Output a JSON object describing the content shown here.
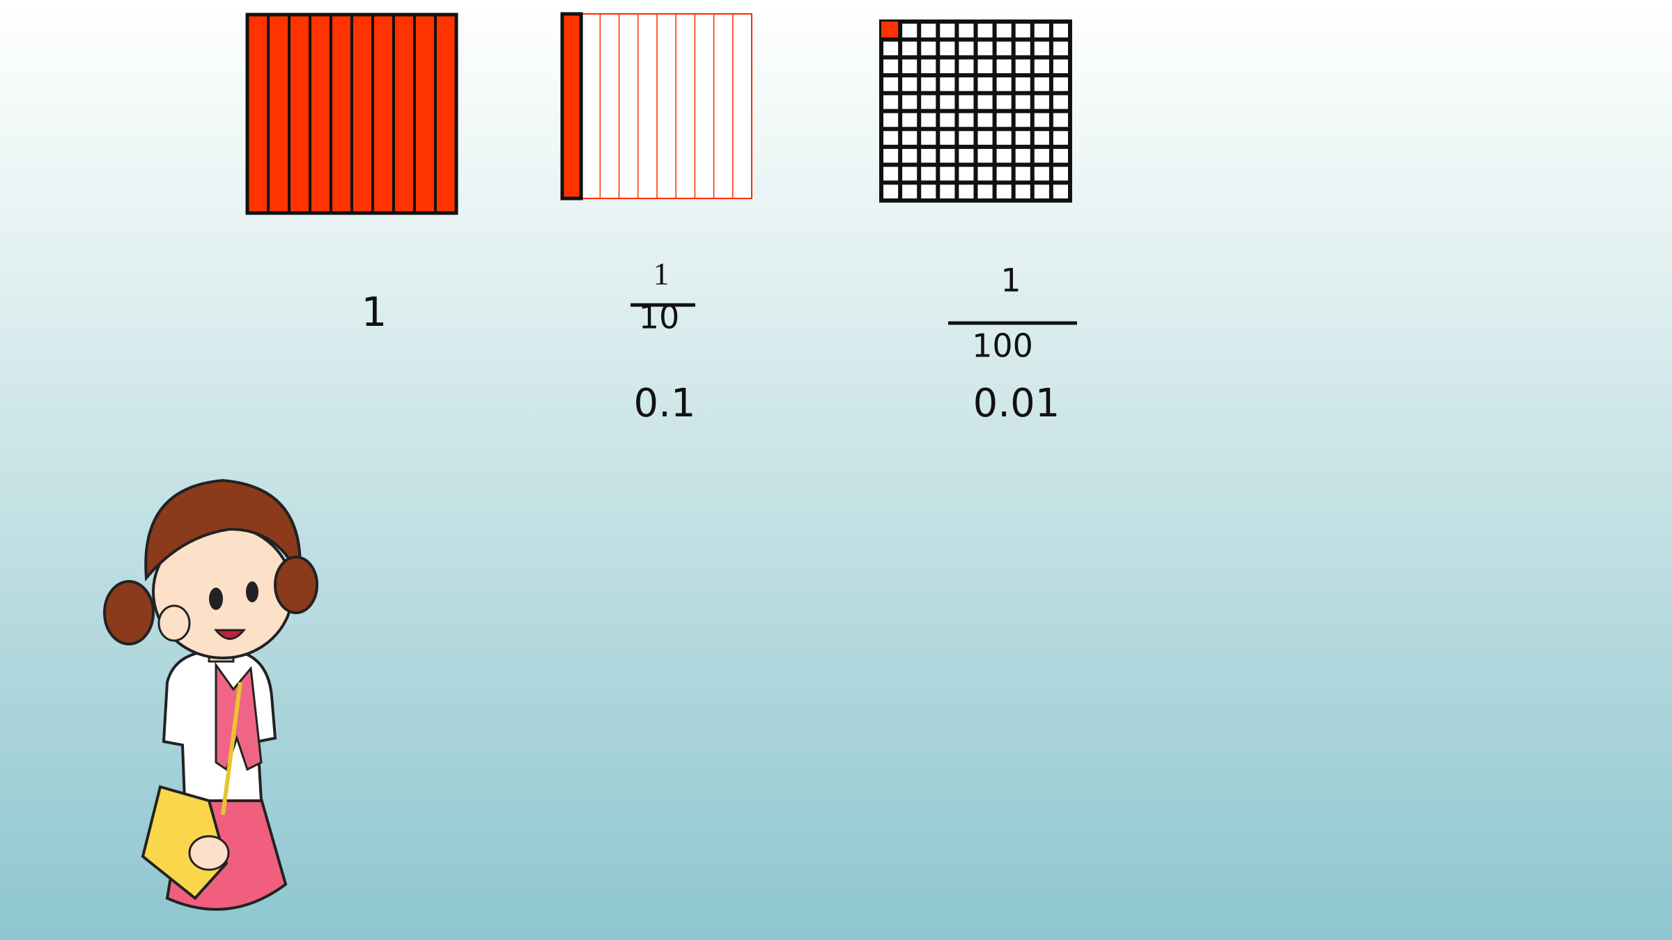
{
  "items": [
    {
      "whole": "1"
    },
    {
      "numerator": "1",
      "denominator": "10",
      "decimal": "0.1"
    },
    {
      "numerator": "1",
      "denominator": "100",
      "decimal": "0.01"
    }
  ]
}
